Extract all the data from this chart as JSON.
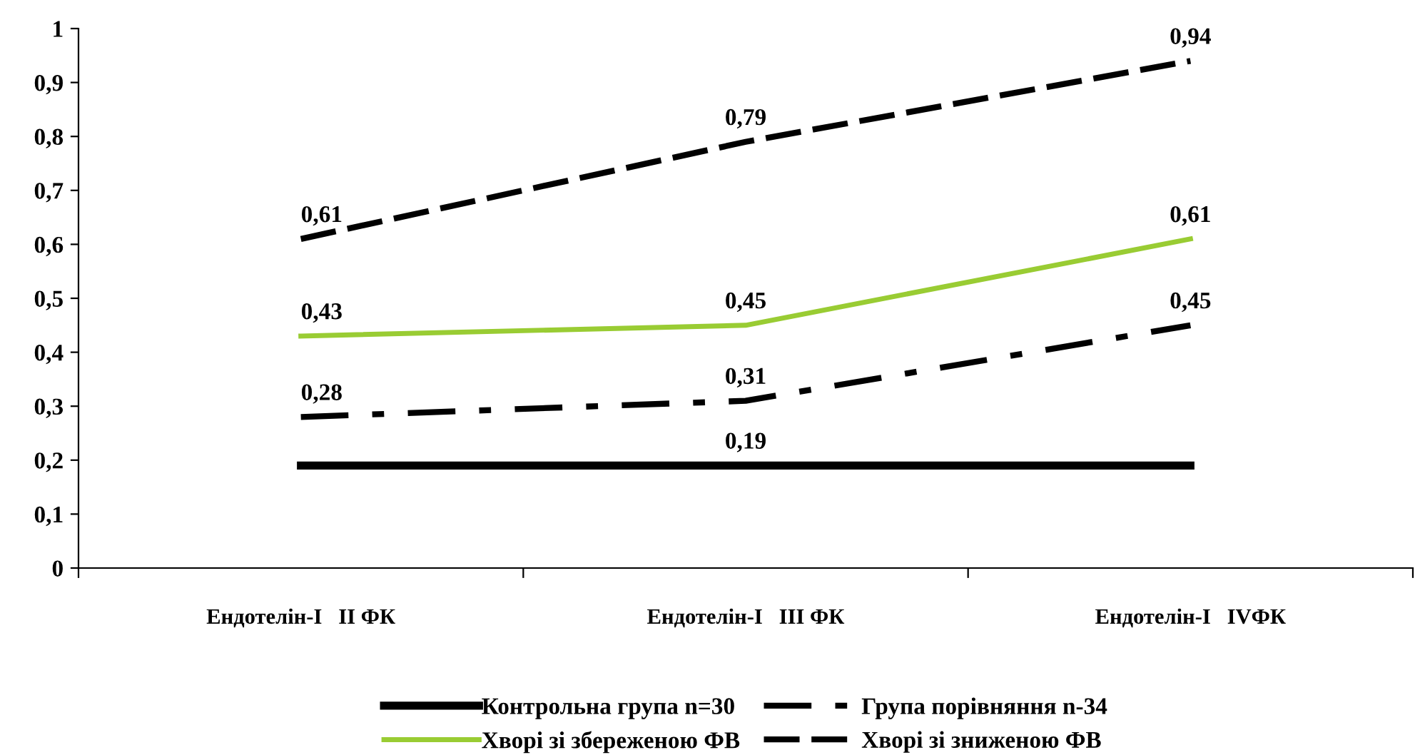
{
  "chart_data": {
    "type": "line",
    "categories": [
      "Ендотелін-I   II ФК",
      "Ендотелін-I   III ФК",
      "Ендотелін-I   IVФК"
    ],
    "ylim": [
      0,
      1
    ],
    "yticks": [
      0,
      {
        "value": 0.1,
        "label": "0,1"
      },
      {
        "value": 0.2,
        "label": "0,2"
      },
      {
        "value": 0.3,
        "label": "0,3"
      },
      {
        "value": 0.4,
        "label": "0,4"
      },
      {
        "value": 0.5,
        "label": "0,5"
      },
      {
        "value": 0.6,
        "label": "0,6"
      },
      {
        "value": 0.7,
        "label": "0,7"
      },
      {
        "value": 0.8,
        "label": "0,8"
      },
      {
        "value": 0.9,
        "label": "0,9"
      },
      1
    ],
    "grid": false,
    "legend": "bottom",
    "marker": "none",
    "series": [
      {
        "name": "Контрольна група n=30",
        "color": "#000000",
        "values": [
          0.19,
          0.19,
          0.19
        ],
        "line_style": "solid",
        "value_labels": [
          null,
          "0,19",
          null
        ]
      },
      {
        "name": "Група порівняння n-34",
        "color": "#000000",
        "values": [
          0.28,
          0.31,
          0.45
        ],
        "line_style": "dashdot",
        "value_labels": [
          "0,28",
          "0,31",
          "0,45"
        ]
      },
      {
        "name": "Хворі зі збереженою ФВ",
        "color": "#99cc33",
        "values": [
          0.43,
          0.45,
          0.61
        ],
        "line_style": "solid",
        "value_labels": [
          "0,43",
          "0,45",
          "0,61"
        ]
      },
      {
        "name": "Хворі зі зниженою ФВ",
        "color": "#000000",
        "values": [
          0.61,
          0.79,
          0.94
        ],
        "line_style": "dashed",
        "value_labels": [
          "0,61",
          "0,79",
          "0,94"
        ]
      }
    ]
  }
}
